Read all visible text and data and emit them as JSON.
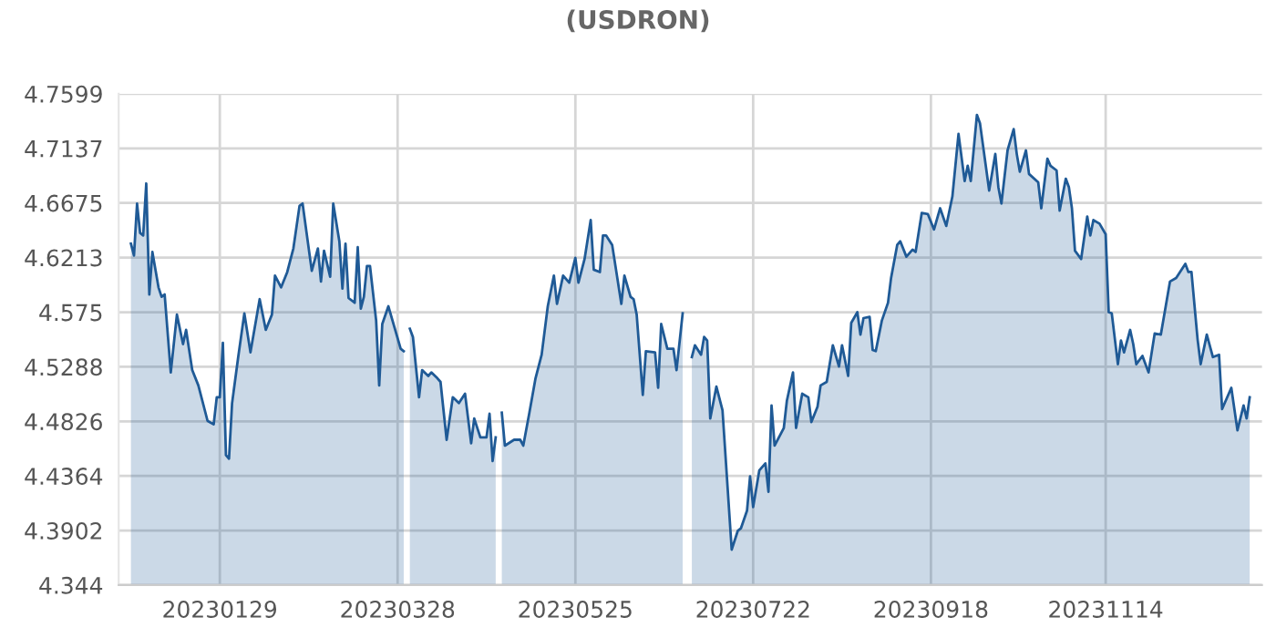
{
  "chart_data": {
    "type": "area",
    "title": "(USDRON)",
    "x": [
      "2022-12-31",
      "2023-01-01",
      "2023-01-02",
      "2023-01-03",
      "2023-01-04",
      "2023-01-05",
      "2023-01-06",
      "2023-01-07",
      "2023-01-09",
      "2023-01-10",
      "2023-01-11",
      "2023-01-13",
      "2023-01-15",
      "2023-01-17",
      "2023-01-18",
      "2023-01-20",
      "2023-01-22",
      "2023-01-25",
      "2023-01-27",
      "2023-01-28",
      "2023-01-29",
      "2023-01-30",
      "2023-01-31",
      "2023-02-01",
      "2023-02-02",
      "2023-02-04",
      "2023-02-06",
      "2023-02-08",
      "2023-02-11",
      "2023-02-13",
      "2023-02-15",
      "2023-02-16",
      "2023-02-18",
      "2023-02-20",
      "2023-02-22",
      "2023-02-24",
      "2023-02-25",
      "2023-02-28",
      "2023-03-02",
      "2023-03-03",
      "2023-03-04",
      "2023-03-06",
      "2023-03-07",
      "2023-03-09",
      "2023-03-10",
      "2023-03-11",
      "2023-03-12",
      "2023-03-14",
      "2023-03-15",
      "2023-03-16",
      "2023-03-17",
      "2023-03-18",
      "2023-03-19",
      "2023-03-21",
      "2023-03-22",
      "2023-03-23",
      "2023-03-25",
      "2023-03-27",
      "2023-03-29",
      "2023-03-30",
      "2023-03-31",
      "2023-04-01",
      "2023-04-02",
      "2023-04-04",
      "2023-04-05",
      "2023-04-07",
      "2023-04-08",
      "2023-04-10",
      "2023-04-11",
      "2023-04-13",
      "2023-04-15",
      "2023-04-17",
      "2023-04-19",
      "2023-04-21",
      "2023-04-22",
      "2023-04-24",
      "2023-04-26",
      "2023-04-27",
      "2023-04-28",
      "2023-04-29",
      "2023-04-30",
      "2023-05-01",
      "2023-05-02",
      "2023-05-05",
      "2023-05-07",
      "2023-05-08",
      "2023-05-10",
      "2023-05-12",
      "2023-05-14",
      "2023-05-16",
      "2023-05-18",
      "2023-05-19",
      "2023-05-21",
      "2023-05-23",
      "2023-05-25",
      "2023-05-26",
      "2023-05-28",
      "2023-05-30",
      "2023-05-31",
      "2023-06-02",
      "2023-06-03",
      "2023-06-04",
      "2023-06-06",
      "2023-06-09",
      "2023-06-10",
      "2023-06-12",
      "2023-06-13",
      "2023-06-14",
      "2023-06-16",
      "2023-06-17",
      "2023-06-20",
      "2023-06-21",
      "2023-06-22",
      "2023-06-24",
      "2023-06-26",
      "2023-06-27",
      "2023-06-29",
      "2023-06-30",
      "2023-07-02",
      "2023-07-03",
      "2023-07-05",
      "2023-07-06",
      "2023-07-07",
      "2023-07-08",
      "2023-07-10",
      "2023-07-12",
      "2023-07-15",
      "2023-07-17",
      "2023-07-18",
      "2023-07-20",
      "2023-07-21",
      "2023-07-22",
      "2023-07-24",
      "2023-07-26",
      "2023-07-27",
      "2023-07-28",
      "2023-07-29",
      "2023-08-01",
      "2023-08-02",
      "2023-08-04",
      "2023-08-05",
      "2023-08-07",
      "2023-08-09",
      "2023-08-10",
      "2023-08-12",
      "2023-08-13",
      "2023-08-15",
      "2023-08-17",
      "2023-08-19",
      "2023-08-20",
      "2023-08-22",
      "2023-08-23",
      "2023-08-25",
      "2023-08-26",
      "2023-08-27",
      "2023-08-29",
      "2023-08-30",
      "2023-08-31",
      "2023-09-02",
      "2023-09-04",
      "2023-09-05",
      "2023-09-07",
      "2023-09-08",
      "2023-09-10",
      "2023-09-12",
      "2023-09-13",
      "2023-09-15",
      "2023-09-17",
      "2023-09-19",
      "2023-09-21",
      "2023-09-23",
      "2023-09-25",
      "2023-09-27",
      "2023-09-29",
      "2023-09-30",
      "2023-10-01",
      "2023-10-03",
      "2023-10-04",
      "2023-10-07",
      "2023-10-09",
      "2023-10-10",
      "2023-10-11",
      "2023-10-13",
      "2023-10-15",
      "2023-10-16",
      "2023-10-17",
      "2023-10-19",
      "2023-10-20",
      "2023-10-23",
      "2023-10-24",
      "2023-10-26",
      "2023-10-27",
      "2023-10-29",
      "2023-10-30",
      "2023-11-01",
      "2023-11-02",
      "2023-11-03",
      "2023-11-04",
      "2023-11-06",
      "2023-11-08",
      "2023-11-09",
      "2023-11-10",
      "2023-11-12",
      "2023-11-14",
      "2023-11-15",
      "2023-11-16",
      "2023-11-18",
      "2023-11-19",
      "2023-11-20",
      "2023-11-22",
      "2023-11-23",
      "2023-11-24",
      "2023-11-26",
      "2023-11-28",
      "2023-11-30",
      "2023-12-02",
      "2023-12-05",
      "2023-12-07",
      "2023-12-10",
      "2023-12-11",
      "2023-12-12",
      "2023-12-14",
      "2023-12-15",
      "2023-12-17",
      "2023-12-19",
      "2023-12-21",
      "2023-12-22",
      "2023-12-25",
      "2023-12-27",
      "2023-12-29",
      "2023-12-30",
      "2023-12-31"
    ],
    "series": [
      {
        "color": "#1f5a96",
        "values": [
          4.633,
          4.623,
          4.667,
          4.642,
          4.64,
          4.684,
          4.59,
          4.626,
          4.596,
          4.588,
          4.59,
          4.524,
          4.573,
          4.548,
          4.56,
          4.526,
          4.513,
          4.483,
          4.48,
          4.503,
          4.503,
          4.549,
          4.454,
          4.451,
          4.498,
          4.537,
          4.574,
          4.541,
          4.586,
          4.56,
          4.573,
          4.606,
          4.596,
          4.609,
          4.629,
          4.665,
          4.667,
          4.61,
          4.629,
          4.601,
          4.627,
          4.605,
          4.667,
          4.635,
          4.595,
          4.633,
          4.587,
          4.583,
          4.63,
          4.578,
          4.588,
          4.614,
          4.614,
          4.568,
          4.513,
          4.565,
          4.58,
          4.562,
          4.544,
          4.542,
          null,
          4.561,
          4.554,
          4.503,
          4.526,
          4.521,
          4.524,
          4.519,
          4.516,
          4.467,
          4.503,
          4.498,
          4.506,
          4.464,
          4.485,
          4.469,
          4.469,
          4.489,
          4.449,
          4.469,
          null,
          4.49,
          4.462,
          4.467,
          4.467,
          4.462,
          4.49,
          4.519,
          4.539,
          4.58,
          4.606,
          4.582,
          4.606,
          4.6,
          4.621,
          4.6,
          4.62,
          4.653,
          4.611,
          4.609,
          4.64,
          4.64,
          4.632,
          4.582,
          4.606,
          4.588,
          4.586,
          4.573,
          4.505,
          4.542,
          4.541,
          4.511,
          4.565,
          4.544,
          4.544,
          4.526,
          4.574,
          null,
          4.537,
          4.547,
          4.539,
          4.554,
          4.551,
          4.485,
          4.512,
          4.492,
          4.374,
          4.39,
          4.392,
          4.407,
          4.436,
          4.41,
          4.441,
          4.447,
          4.423,
          4.496,
          4.462,
          4.477,
          4.5,
          4.524,
          4.477,
          4.506,
          4.503,
          4.482,
          4.495,
          4.513,
          4.516,
          4.547,
          4.529,
          4.547,
          4.521,
          4.566,
          4.575,
          4.556,
          4.57,
          4.571,
          4.543,
          4.542,
          4.568,
          4.583,
          4.604,
          4.632,
          4.635,
          4.622,
          4.628,
          4.626,
          4.659,
          4.658,
          4.645,
          4.663,
          4.648,
          4.673,
          4.726,
          4.686,
          4.699,
          4.686,
          4.742,
          4.735,
          4.678,
          4.709,
          4.681,
          4.667,
          4.712,
          4.73,
          4.709,
          4.694,
          4.712,
          4.692,
          4.685,
          4.663,
          4.705,
          4.699,
          4.695,
          4.661,
          4.688,
          4.681,
          4.663,
          4.627,
          4.62,
          4.656,
          4.64,
          4.653,
          4.65,
          4.641,
          4.575,
          4.574,
          4.531,
          4.551,
          4.541,
          4.56,
          4.548,
          4.531,
          4.538,
          4.524,
          4.557,
          4.556,
          4.601,
          4.604,
          4.616,
          4.609,
          4.609,
          4.552,
          4.531,
          4.556,
          4.537,
          4.539,
          4.493,
          4.511,
          4.475,
          4.496,
          4.485,
          4.503
        ]
      }
    ],
    "xlim": [
      "2022-12-27",
      "2024-01-04"
    ],
    "xticks": [
      {
        "value": "2023-01-29",
        "label": "20230129"
      },
      {
        "value": "2023-03-28",
        "label": "20230328"
      },
      {
        "value": "2023-05-25",
        "label": "20230525"
      },
      {
        "value": "2023-07-22",
        "label": "20230722"
      },
      {
        "value": "2023-09-18",
        "label": "20230918"
      },
      {
        "value": "2023-11-14",
        "label": "20231114"
      }
    ],
    "ylim": [
      4.344,
      4.7599
    ],
    "yticks": [
      4.344,
      4.3902,
      4.4364,
      4.4826,
      4.5288,
      4.575,
      4.6213,
      4.6675,
      4.7137,
      4.7599
    ],
    "grid": true
  }
}
